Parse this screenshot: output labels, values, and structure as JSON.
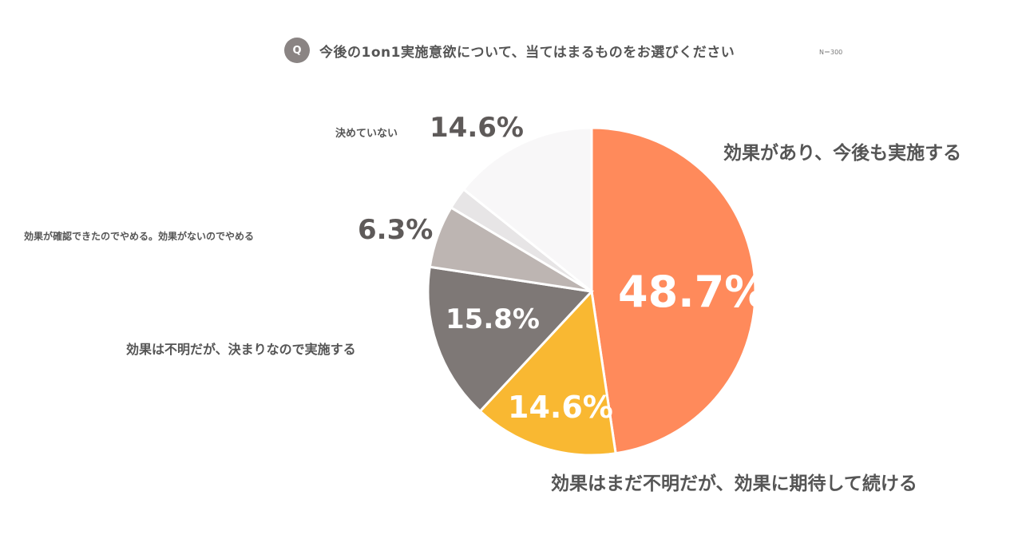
{
  "header": {
    "badge": "Q",
    "title": "今後の1on1実施意欲について、当てはまるものをお選びください",
    "note": "N＝300"
  },
  "chart_data": {
    "type": "pie",
    "slices": [
      {
        "label": "効果があり、今後も実施する",
        "value": 48.7,
        "display": "48.7%",
        "color": "#FF8A5B"
      },
      {
        "label": "効果はまだ不明だが、効果に期待して続ける",
        "value": 14.6,
        "display": "14.6%",
        "color": "#F9B832"
      },
      {
        "label": "効果は不明だが、決まりなので実施する",
        "value": 15.8,
        "display": "15.8%",
        "color": "#7E7876"
      },
      {
        "label": "効果が確認できたのでやめる。効果がないのでやめる",
        "value": 6.3,
        "display": "6.3%",
        "color": "#BDB5B2"
      },
      {
        "label": "",
        "value": 2.2,
        "display": "",
        "color": "#E7E5E6"
      },
      {
        "label": "決めていない",
        "value": 14.6,
        "display": "14.6%",
        "color": "#F8F7F8"
      }
    ]
  }
}
